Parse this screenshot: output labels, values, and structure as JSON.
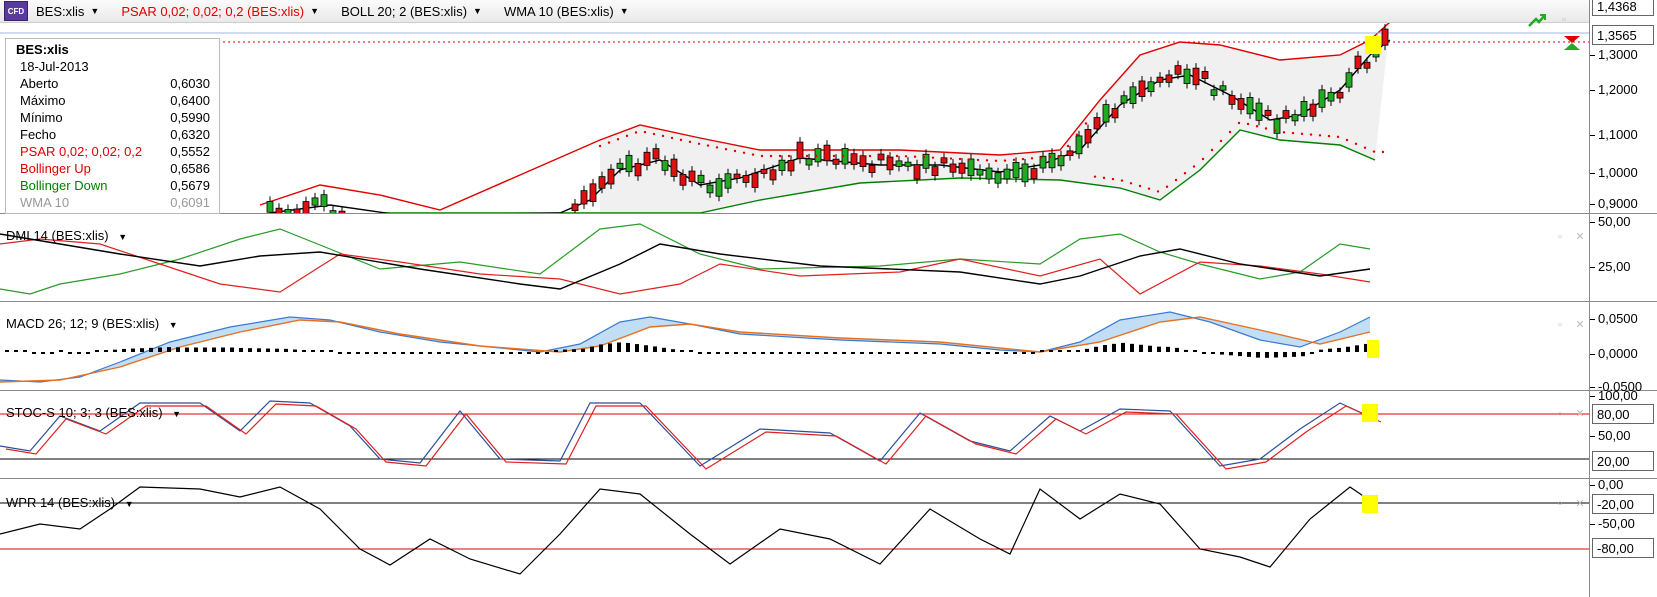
{
  "header": {
    "symbol": "BES:xlis",
    "indicators": [
      {
        "label": "PSAR 0,02; 0,02; 0,2 (BES:xlis)",
        "color": "#e00000"
      },
      {
        "label": "BOLL 20; 2 (BES:xlis)",
        "color": "#000000"
      },
      {
        "label": "WMA 10 (BES:xlis)",
        "color": "#000000"
      }
    ],
    "badge": "CFD"
  },
  "info_box": {
    "symbol": "BES:xlis",
    "date": "18-Jul-2013",
    "rows": [
      {
        "label": "Aberto",
        "value": "0,6030",
        "color": "#000000"
      },
      {
        "label": "Máximo",
        "value": "0,6400",
        "color": "#000000"
      },
      {
        "label": "Mínimo",
        "value": "0,5990",
        "color": "#000000"
      },
      {
        "label": "Fecho",
        "value": "0,6320",
        "color": "#000000"
      },
      {
        "label": "PSAR 0,02; 0,02; 0,2",
        "value": "0,5552",
        "color": "#e00000"
      },
      {
        "label": "Bollinger Up",
        "value": "0,6586",
        "color": "#e00000"
      },
      {
        "label": "Bollinger Down",
        "value": "0,5679",
        "color": "#008000"
      },
      {
        "label": "WMA 10",
        "value": "0,6091",
        "color": "#888888"
      }
    ]
  },
  "panes": {
    "price": {
      "ticks": [
        "1,4368",
        "1,3565",
        "1,3000",
        "1,2000",
        "1,1000",
        "1,0000",
        "0,9000"
      ],
      "last_price": "1,3565",
      "high_label": "1,4368"
    },
    "dmi": {
      "label": "DMI 14 (BES:xlis)",
      "ticks": [
        "50,00",
        "25,00"
      ]
    },
    "macd": {
      "label": "MACD 26; 12; 9 (BES:xlis)",
      "ticks": [
        "0,0500",
        "0,0000",
        "-0,0500"
      ]
    },
    "stoch": {
      "label": "STOC-S 10; 3; 3 (BES:xlis)",
      "ticks": [
        "100,00",
        "80,00",
        "50,00",
        "20,00"
      ]
    },
    "wpr": {
      "label": "WPR 14 (BES:xlis)",
      "ticks": [
        "0,00",
        "-20,00",
        "-50,00",
        "-80,00"
      ]
    }
  },
  "colors": {
    "up": "#22aa22",
    "down": "#dd1111",
    "boll_up": "#e00000",
    "boll_down": "#008000",
    "macd_fill": "#a8d0f0",
    "signal": "#e87020",
    "highlight": "#ffff00"
  }
}
